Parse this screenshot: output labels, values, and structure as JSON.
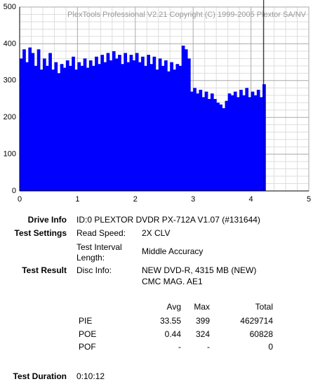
{
  "chart_data": {
    "type": "bar",
    "title": "PlexTools Professional V2.21 Copyright (C) 1999-2005 Plextor SA/NV",
    "x": [
      0,
      0.05,
      0.1,
      0.15,
      0.2,
      0.25,
      0.3,
      0.35,
      0.4,
      0.45,
      0.5,
      0.55,
      0.6,
      0.65,
      0.7,
      0.75,
      0.8,
      0.85,
      0.9,
      0.95,
      1,
      1.05,
      1.1,
      1.15,
      1.2,
      1.25,
      1.3,
      1.35,
      1.4,
      1.45,
      1.5,
      1.55,
      1.6,
      1.65,
      1.7,
      1.75,
      1.8,
      1.85,
      1.9,
      1.95,
      2,
      2.05,
      2.1,
      2.15,
      2.2,
      2.25,
      2.3,
      2.35,
      2.4,
      2.45,
      2.5,
      2.55,
      2.6,
      2.65,
      2.7,
      2.75,
      2.8,
      2.85,
      2.9,
      2.95,
      3,
      3.05,
      3.1,
      3.15,
      3.2,
      3.25,
      3.3,
      3.35,
      3.4,
      3.45,
      3.5,
      3.55,
      3.6,
      3.65,
      3.7,
      3.75,
      3.8,
      3.85,
      3.9,
      3.95,
      4,
      4.05,
      4.1,
      4.15,
      4.2
    ],
    "values": [
      360,
      385,
      350,
      390,
      375,
      340,
      385,
      330,
      360,
      340,
      375,
      330,
      350,
      320,
      345,
      335,
      355,
      340,
      365,
      330,
      350,
      340,
      360,
      335,
      355,
      340,
      365,
      345,
      370,
      350,
      375,
      355,
      380,
      360,
      370,
      345,
      375,
      350,
      370,
      355,
      375,
      350,
      365,
      340,
      370,
      345,
      365,
      330,
      360,
      340,
      355,
      325,
      350,
      330,
      345,
      340,
      395,
      385,
      360,
      270,
      280,
      265,
      275,
      255,
      270,
      250,
      265,
      250,
      240,
      235,
      225,
      245,
      265,
      260,
      270,
      255,
      275,
      260,
      280,
      255,
      270,
      260,
      275,
      255,
      290
    ],
    "color": "#0000ff",
    "end_x": 4.22,
    "xlim": [
      0,
      5
    ],
    "ylim": [
      0,
      500
    ],
    "xticks": [
      0,
      1,
      2,
      3,
      4,
      5
    ],
    "yticks": [
      0,
      100,
      200,
      300,
      400,
      500
    ],
    "grid": true
  },
  "info": {
    "drive_info": {
      "label": "Drive Info",
      "value": "ID:0 PLEXTOR DVDR PX-712A V1.07 (#131644)"
    },
    "test_settings": {
      "label": "Test Settings",
      "read_speed_label": "Read Speed:",
      "read_speed": "2X CLV",
      "interval_label": "Test Interval Length:",
      "interval": "Middle Accuracy"
    },
    "test_result": {
      "label": "Test Result",
      "disc_info_label": "Disc Info:",
      "disc_info": [
        "NEW DVD-R, 4315 MB (NEW)",
        "CMC MAG. AE1"
      ]
    },
    "table": {
      "header": [
        "Avg",
        "Max",
        "Total"
      ],
      "rows": [
        [
          "PIE",
          33.55,
          399,
          4629714
        ],
        [
          "POE",
          0.44,
          324,
          60828
        ],
        [
          "POF",
          "-",
          "-",
          0
        ]
      ]
    },
    "test_duration": {
      "label": "Test Duration",
      "value": "0:10:12"
    }
  }
}
